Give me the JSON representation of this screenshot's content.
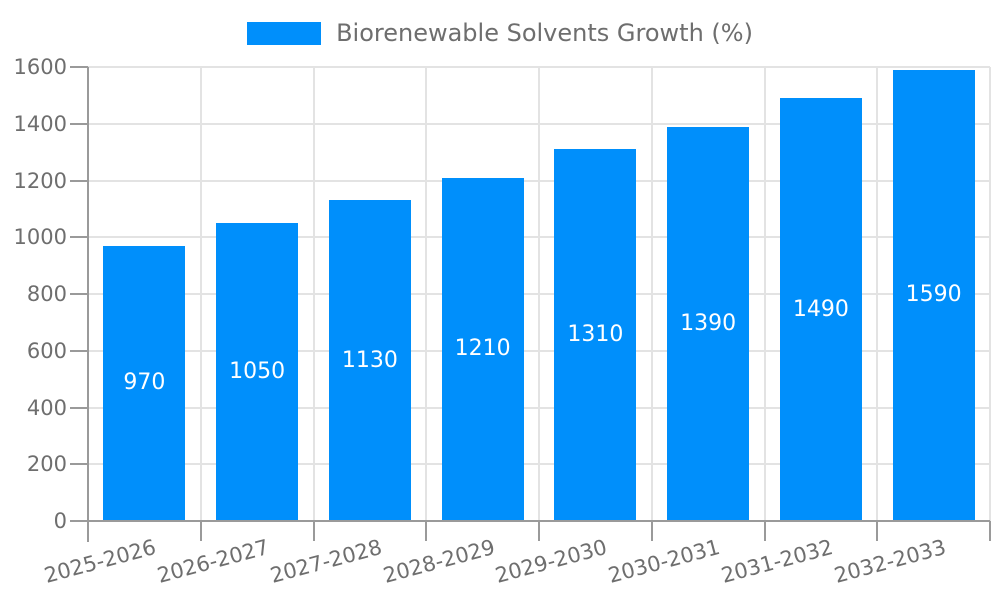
{
  "chart_data": {
    "type": "bar",
    "title": "",
    "legend": "Biorenewable Solvents Growth (%)",
    "legend_position": "top-center",
    "categories": [
      "2025-2026",
      "2026-2027",
      "2027-2028",
      "2028-2029",
      "2029-2030",
      "2030-2031",
      "2031-2032",
      "2032-2033"
    ],
    "series": [
      {
        "name": "Biorenewable Solvents Growth (%)",
        "values": [
          970,
          1050,
          1130,
          1210,
          1310,
          1390,
          1490,
          1590
        ],
        "value_labels": [
          "970",
          "1050",
          "1130",
          "1210",
          "1310",
          "1390",
          "1490",
          "1590"
        ]
      }
    ],
    "xlabel": "",
    "ylabel": "",
    "ylim": [
      0,
      1600
    ],
    "yticks": [
      0,
      200,
      400,
      600,
      800,
      1000,
      1200,
      1400,
      1600
    ],
    "grid": true,
    "data_labels": "white, centered vertically inside bars",
    "colors": {
      "bar": "#008FFB",
      "axis": "#9a9a9a",
      "grid": "#e3e3e3",
      "text": "#6e6e6e",
      "bar_label": "#ffffff"
    }
  }
}
